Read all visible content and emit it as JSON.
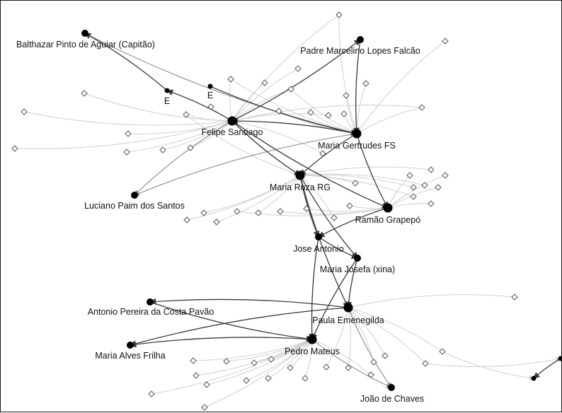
{
  "graph": {
    "named_nodes": [
      {
        "id": "balthazar",
        "label": "Balthazar Pinto de Aguiar (Capitão)",
        "size": "medium"
      },
      {
        "id": "padre",
        "label": "Padre Marcelino Lopes Falcão",
        "size": "medium"
      },
      {
        "id": "e1",
        "label": "E",
        "size": "small"
      },
      {
        "id": "e2",
        "label": "E",
        "size": "small"
      },
      {
        "id": "felipe",
        "label": "Felipe Santiago",
        "size": "large"
      },
      {
        "id": "gertrudes",
        "label": "Maria Gertrudes FS",
        "size": "large"
      },
      {
        "id": "luciano",
        "label": "Luciano Paim dos Santos",
        "size": "medium"
      },
      {
        "id": "roza",
        "label": "Maria Roza RG",
        "size": "large"
      },
      {
        "id": "ramao",
        "label": "Ramão Grapepó",
        "size": "large"
      },
      {
        "id": "jose",
        "label": "Jose Antonio",
        "size": "medium"
      },
      {
        "id": "josefa",
        "label": "Maria Josefa (xina)",
        "size": "medium"
      },
      {
        "id": "antonio",
        "label": "Antonio Pereira da Costa Pavão",
        "size": "medium"
      },
      {
        "id": "paula",
        "label": "Paula Emenegilda",
        "size": "large"
      },
      {
        "id": "alves",
        "label": "Maria Alves Frilha",
        "size": "medium"
      },
      {
        "id": "pedro",
        "label": "Pedro Mateus",
        "size": "large"
      },
      {
        "id": "joao",
        "label": "João de Chaves",
        "size": "medium"
      },
      {
        "id": "r1",
        "label": "",
        "size": "small"
      },
      {
        "id": "r2",
        "label": "",
        "size": "small"
      }
    ],
    "dark_edges": [
      [
        "e1",
        "balthazar"
      ],
      [
        "felipe",
        "e1"
      ],
      [
        "e2",
        "gertrudes"
      ],
      [
        "felipe",
        "padre"
      ],
      [
        "gertrudes",
        "felipe"
      ],
      [
        "felipe",
        "roza"
      ],
      [
        "felipe",
        "ramao"
      ],
      [
        "gertrudes",
        "roza"
      ],
      [
        "gertrudes",
        "ramao"
      ],
      [
        "roza",
        "jose"
      ],
      [
        "roza",
        "josefa"
      ],
      [
        "jose",
        "josefa"
      ],
      [
        "ramao",
        "jose"
      ],
      [
        "jose",
        "pedro"
      ],
      [
        "josefa",
        "pedro"
      ],
      [
        "josefa",
        "paula"
      ],
      [
        "roza",
        "paula"
      ],
      [
        "paula",
        "antonio"
      ],
      [
        "paula",
        "alves"
      ],
      [
        "antonio",
        "pedro"
      ],
      [
        "pedro",
        "alves"
      ],
      [
        "r1",
        "r2"
      ],
      [
        "padre",
        "gertrudes"
      ]
    ],
    "gray_edges": [
      [
        "balthazar",
        "gertrudes"
      ],
      [
        "felipe",
        "luciano"
      ],
      [
        "gertrudes",
        "luciano"
      ],
      [
        "pedro",
        "joao"
      ],
      [
        "paula",
        "joao"
      ]
    ],
    "colors": {
      "node": "#000000",
      "diamond_fill": "#ffffff",
      "diamond_stroke": "#555555",
      "edge_dark": "#3a3a3a",
      "edge_gray": "#8a8a8a",
      "edge_light": "#cfcfcf",
      "border": "#1a1a1a"
    }
  }
}
